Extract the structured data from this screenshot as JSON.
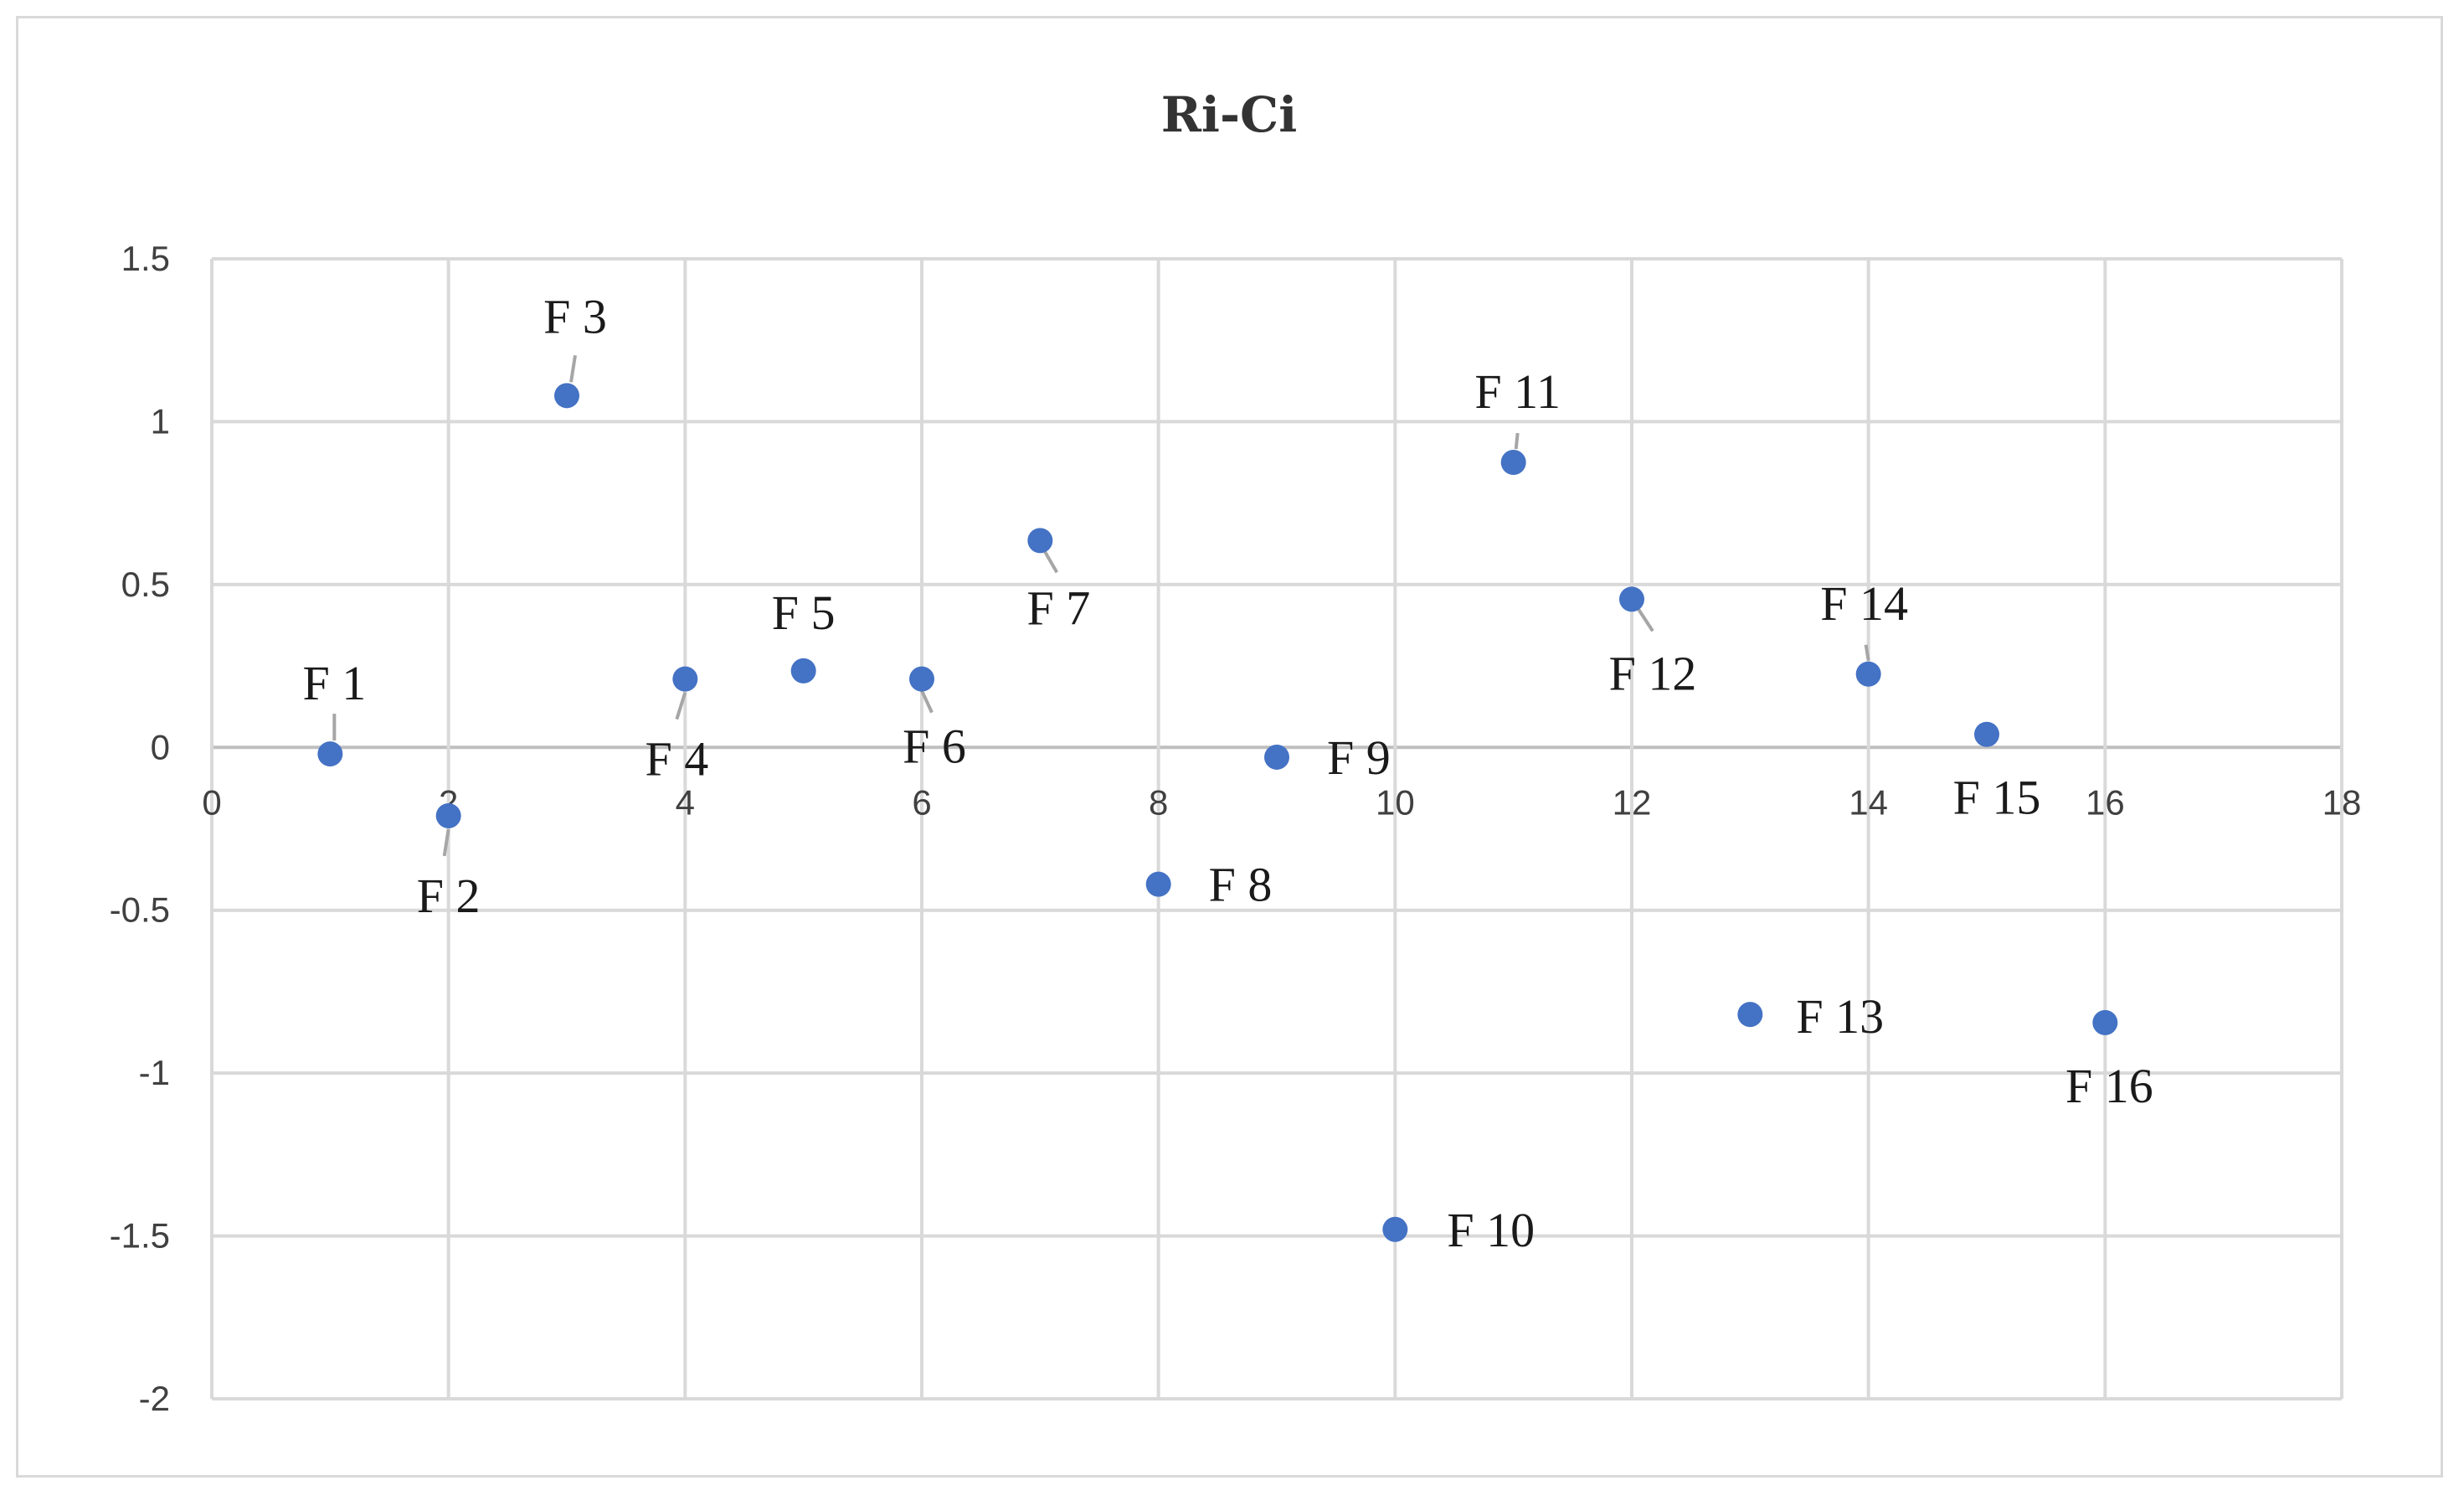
{
  "chart_data": {
    "type": "scatter",
    "title": "Ri-Ci",
    "xlabel": "",
    "ylabel": "",
    "xlim": [
      0,
      18
    ],
    "ylim": [
      -2,
      1.5
    ],
    "x_ticks": [
      "0",
      "2",
      "4",
      "6",
      "8",
      "10",
      "12",
      "14",
      "16",
      "18"
    ],
    "y_ticks": [
      "1.5",
      "1",
      "0.5",
      "0",
      "-0.5",
      "-1",
      "-1.5",
      "-2"
    ],
    "grid": true,
    "legend": "none",
    "marker_color": "#4472C4",
    "series": [
      {
        "points": [
          {
            "x": 1,
            "y": -0.02,
            "label": "F 1"
          },
          {
            "x": 2,
            "y": -0.21,
            "label": "F 2"
          },
          {
            "x": 3,
            "y": 1.08,
            "label": "F 3"
          },
          {
            "x": 4,
            "y": 0.21,
            "label": "F 4"
          },
          {
            "x": 5,
            "y": 0.235,
            "label": "F 5"
          },
          {
            "x": 6,
            "y": 0.21,
            "label": "F 6"
          },
          {
            "x": 7,
            "y": 0.635,
            "label": "F 7"
          },
          {
            "x": 8,
            "y": -0.42,
            "label": "F 8"
          },
          {
            "x": 9,
            "y": -0.03,
            "label": "F 9"
          },
          {
            "x": 10,
            "y": -1.48,
            "label": "F 10"
          },
          {
            "x": 11,
            "y": 0.875,
            "label": "F 11"
          },
          {
            "x": 12,
            "y": 0.455,
            "label": "F 12"
          },
          {
            "x": 13,
            "y": -0.82,
            "label": "F 13"
          },
          {
            "x": 14,
            "y": 0.225,
            "label": "F 14"
          },
          {
            "x": 15,
            "y": 0.04,
            "label": "F 15"
          },
          {
            "x": 16,
            "y": -0.845,
            "label": "F 16"
          }
        ]
      }
    ]
  }
}
